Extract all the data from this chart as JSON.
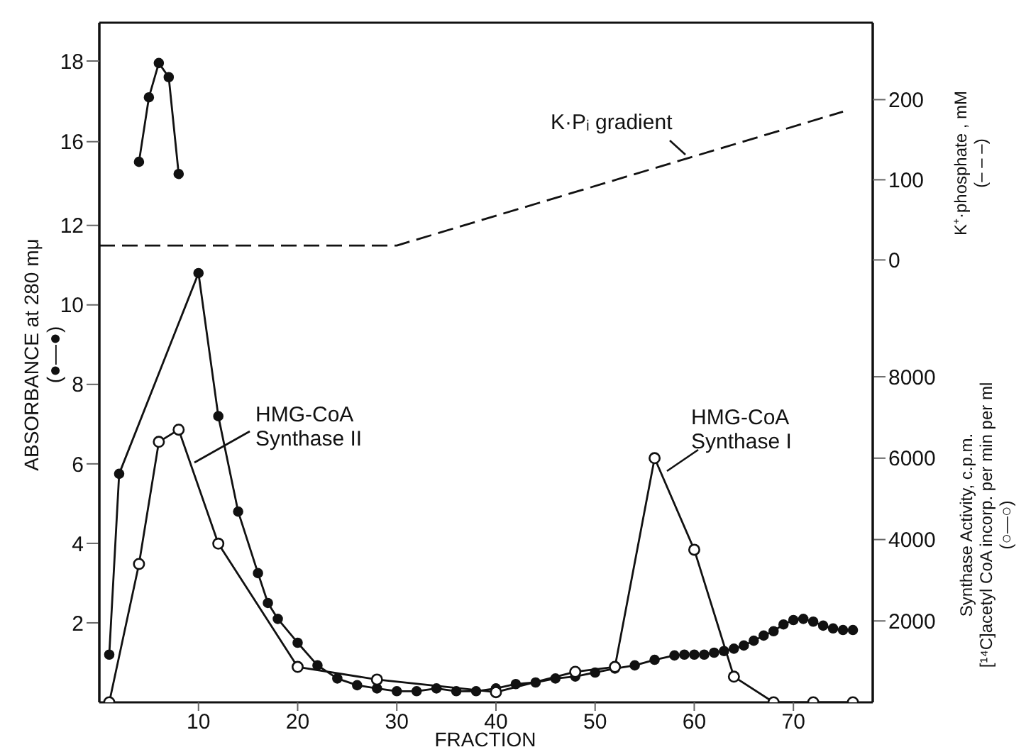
{
  "chart_data": [
    {
      "type": "line",
      "xlabel": "FRACTION",
      "ylabel": "ABSORBANCE at 280 mμ\n(●—●)",
      "y2label": "Synthase  Activity, c.p.m.\n[¹⁴C]acetyl CoA incorp. per min per ml\n(○—○)",
      "xlim": [
        0,
        78
      ],
      "xticks": [
        10,
        20,
        30,
        40,
        50,
        60,
        70
      ],
      "ylim": [
        0,
        17.1
      ],
      "yticks": [
        2,
        4,
        6,
        8,
        10,
        12
      ],
      "y2lim": [
        0,
        16700
      ],
      "y2ticks": [
        2000,
        4000,
        6000,
        8000
      ],
      "marker": "circle",
      "annotations": [
        "HMG-CoA\nSynthase II",
        "HMG-CoA\nSynthase I"
      ],
      "series": [
        {
          "color": "#111111",
          "x": [
            1,
            2,
            10,
            12,
            14,
            16,
            17,
            18,
            20,
            22,
            24,
            26,
            28,
            30,
            32,
            34,
            36,
            38,
            40,
            42,
            44,
            46,
            48,
            50,
            52,
            54,
            56,
            58,
            59,
            60,
            61,
            62,
            63,
            64,
            65,
            66,
            67,
            68,
            69,
            70,
            71,
            72,
            73,
            74,
            75,
            76
          ],
          "values": [
            1.2,
            5.75,
            10.8,
            7.2,
            4.8,
            3.25,
            2.5,
            2.1,
            1.5,
            0.93,
            0.6,
            0.43,
            0.35,
            0.28,
            0.28,
            0.35,
            0.28,
            0.28,
            0.35,
            0.46,
            0.5,
            0.6,
            0.65,
            0.75,
            0.85,
            0.93,
            1.07,
            1.18,
            1.2,
            1.2,
            1.2,
            1.25,
            1.29,
            1.35,
            1.43,
            1.55,
            1.68,
            1.79,
            1.96,
            2.07,
            2.1,
            2.03,
            1.93,
            1.86,
            1.82,
            1.82
          ]
        },
        {
          "color": "#111111",
          "axis": "y2",
          "x": [
            1,
            4,
            6,
            8,
            12,
            20,
            28,
            40,
            48,
            52,
            56,
            60,
            64,
            68,
            72,
            76
          ],
          "values": [
            0,
            3400,
            6400,
            6700,
            3900,
            870,
            560,
            250,
            750,
            870,
            6000,
            3750,
            630,
            0,
            0,
            0
          ]
        }
      ]
    },
    {
      "type": "line",
      "xlim": [
        0,
        78
      ],
      "ylim": [
        2.1,
        18.95
      ],
      "yticks": [
        16,
        18
      ],
      "y2lim": [
        -552,
        296
      ],
      "y2ticks": [
        0,
        100,
        200
      ],
      "y2label": "K⁺·phosphate , mM\n(– – –)",
      "tick_labels": "y",
      "marker": "circle",
      "annotations": [
        "K·Pᵢ gradient"
      ],
      "series": [
        {
          "color": "#111111",
          "x": [
            4,
            5,
            6,
            7,
            8
          ],
          "values": [
            15.5,
            17.1,
            17.95,
            17.6,
            15.2
          ]
        },
        {
          "color": "#111111",
          "axis": "y2",
          "marker": "none",
          "line_style": "dashed",
          "x": [
            0,
            30,
            75
          ],
          "values": [
            18,
            18,
            185
          ]
        }
      ]
    }
  ]
}
